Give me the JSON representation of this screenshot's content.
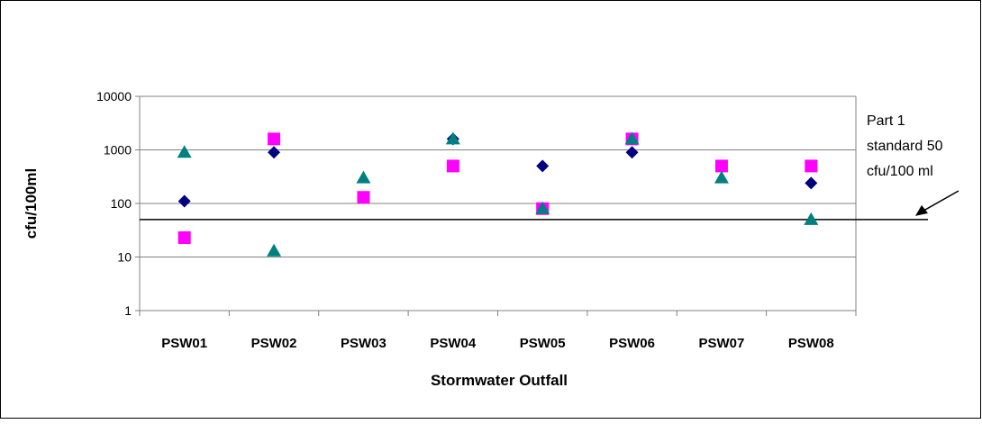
{
  "colors": {
    "series_diamond": "#000080",
    "series_square": "#ff00ff",
    "series_triangle": "#008080",
    "gridline": "#808080",
    "axis": "#808080",
    "reference_line": "#000000",
    "border": "#000000"
  },
  "chart_data": {
    "type": "scatter",
    "categories": [
      "PSW01",
      "PSW02",
      "PSW03",
      "PSW04",
      "PSW05",
      "PSW06",
      "PSW07",
      "PSW08"
    ],
    "series": [
      {
        "marker": "diamond",
        "color": "#000080",
        "values": [
          110,
          900,
          null,
          1600,
          500,
          900,
          null,
          240
        ]
      },
      {
        "marker": "square",
        "color": "#ff00ff",
        "values": [
          23,
          1600,
          130,
          500,
          80,
          1600,
          500,
          500
        ]
      },
      {
        "marker": "triangle",
        "color": "#008080",
        "values": [
          900,
          13,
          300,
          1600,
          80,
          1600,
          300,
          50
        ]
      }
    ],
    "title": "",
    "xlabel": "Stormwater Outfall",
    "ylabel": "cfu/100ml",
    "y_scale": "log",
    "ylim": [
      1,
      10000
    ],
    "y_ticks": [
      "1",
      "10",
      "100",
      "1000",
      "10000"
    ],
    "gridlines": "horizontal",
    "legend": "none",
    "reference_line": {
      "value": 50
    },
    "annotation": [
      "Part 1",
      "standard 50",
      "cfu/100 ml"
    ]
  }
}
